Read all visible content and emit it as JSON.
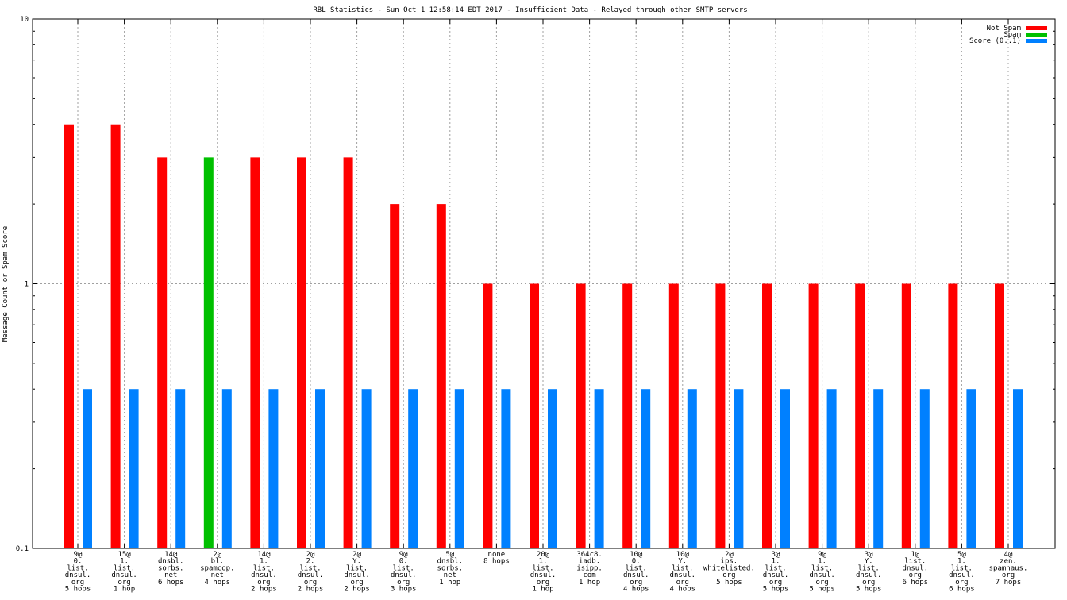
{
  "chart_data": {
    "type": "bar",
    "title": "RBL Statistics - Sun Oct  1 12:58:14 EDT 2017 - Insufficient Data - Relayed through other SMTP servers",
    "xlabel": "",
    "ylabel": "Message Count or Spam Score",
    "y_scale": "log",
    "ylim": [
      0.1,
      10
    ],
    "yticks": [
      "0.1",
      "1",
      "10"
    ],
    "grid": true,
    "legend_position": "top-right",
    "categories": [
      [
        "9@",
        "0.",
        "list.",
        "dnsul.",
        "org",
        "5 hops"
      ],
      [
        "15@",
        "1.",
        "list.",
        "dnsul.",
        "org",
        "1 hop"
      ],
      [
        "14@",
        "dnsbl.",
        "sorbs.",
        "net",
        "6 hops"
      ],
      [
        "2@",
        "bl.",
        "spamcop.",
        "net",
        "4 hops"
      ],
      [
        "14@",
        "1.",
        "list.",
        "dnsul.",
        "org",
        "2 hops"
      ],
      [
        "2@",
        "2.",
        "list.",
        "dnsul.",
        "org",
        "2 hops"
      ],
      [
        "2@",
        "Y.",
        "list.",
        "dnsul.",
        "org",
        "2 hops"
      ],
      [
        "9@",
        "0.",
        "list.",
        "dnsul.",
        "org",
        "3 hops"
      ],
      [
        "5@",
        "dnsbl.",
        "sorbs.",
        "net",
        "1 hop"
      ],
      [
        "none",
        "8 hops"
      ],
      [
        "20@",
        "1.",
        "list.",
        "dnsul.",
        "org",
        "1 hop"
      ],
      [
        "364c8.",
        "iadb.",
        "isipp.",
        "com",
        "1 hop"
      ],
      [
        "10@",
        "0.",
        "list.",
        "dnsul.",
        "org",
        "4 hops"
      ],
      [
        "10@",
        "Y.",
        "list.",
        "dnsul.",
        "org",
        "4 hops"
      ],
      [
        "2@",
        "ips.",
        "whitelisted.",
        "org",
        "5 hops"
      ],
      [
        "3@",
        "1.",
        "list.",
        "dnsul.",
        "org",
        "5 hops"
      ],
      [
        "9@",
        "1.",
        "list.",
        "dnsul.",
        "org",
        "5 hops"
      ],
      [
        "3@",
        "Y.",
        "list.",
        "dnsul.",
        "org",
        "5 hops"
      ],
      [
        "1@",
        "list.",
        "dnsul.",
        "org",
        "6 hops"
      ],
      [
        "5@",
        "1.",
        "list.",
        "dnsul.",
        "org",
        "6 hops"
      ],
      [
        "4@",
        "zen.",
        "spamhaus.",
        "org",
        "7 hops"
      ]
    ],
    "series": [
      {
        "name": "Not Spam",
        "color": "#ff0000",
        "values": [
          4,
          4,
          3,
          0,
          3,
          3,
          3,
          2,
          2,
          1,
          1,
          1,
          1,
          1,
          1,
          1,
          1,
          1,
          1,
          1,
          1
        ]
      },
      {
        "name": "Spam",
        "color": "#00c000",
        "values": [
          0,
          0,
          0,
          3,
          0,
          0,
          0,
          0,
          0,
          0,
          0,
          0,
          0,
          0,
          0,
          0,
          0,
          0,
          0,
          0,
          0
        ]
      },
      {
        "name": "Score (0..1)",
        "color": "#0080ff",
        "values": [
          0.4,
          0.4,
          0.4,
          0.4,
          0.4,
          0.4,
          0.4,
          0.4,
          0.4,
          0.4,
          0.4,
          0.4,
          0.4,
          0.4,
          0.4,
          0.4,
          0.4,
          0.4,
          0.4,
          0.4,
          0.4
        ]
      }
    ]
  }
}
